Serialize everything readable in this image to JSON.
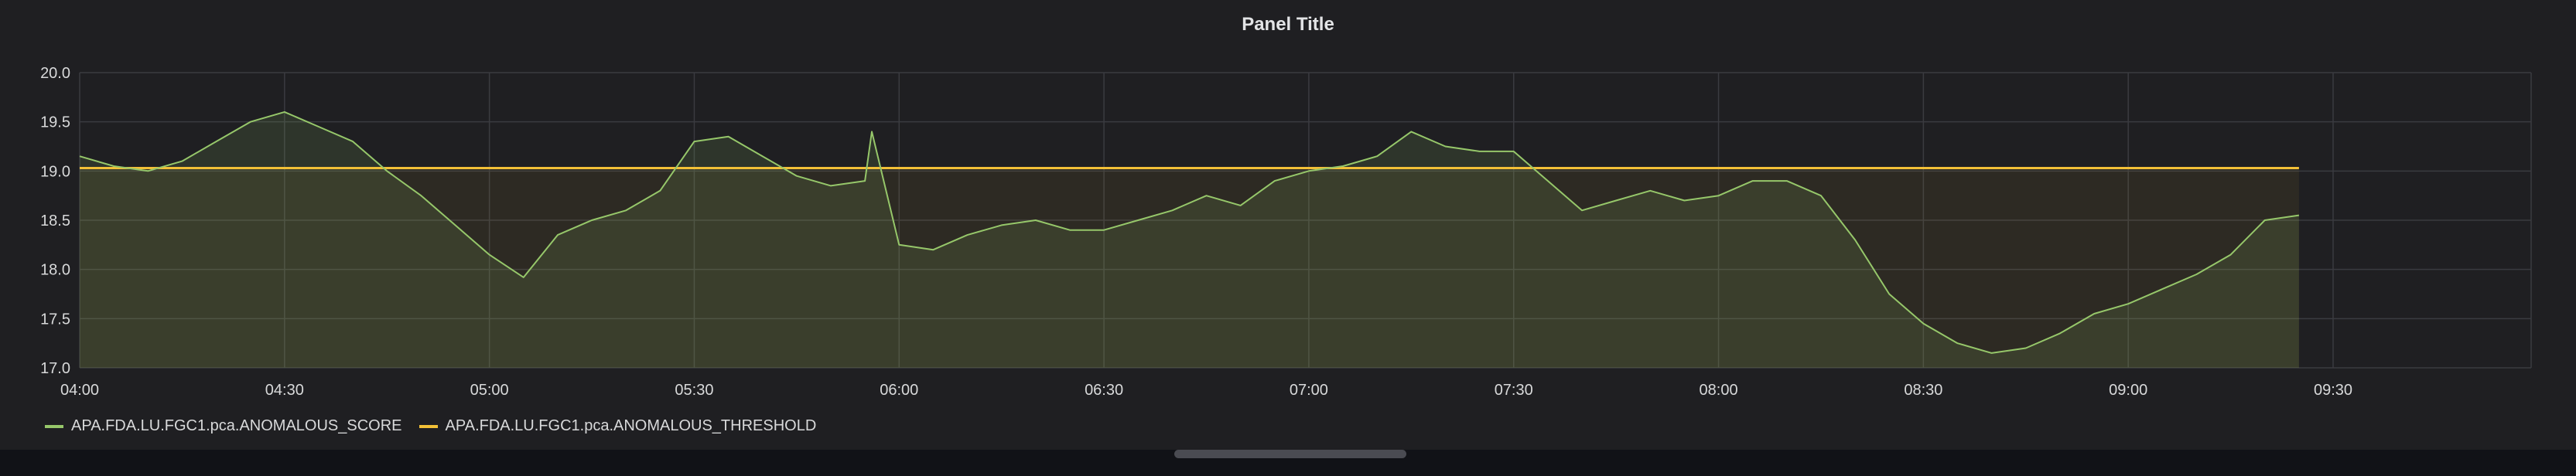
{
  "panel": {
    "title": "Panel Title"
  },
  "colors": {
    "background": "#1f1f22",
    "grid": "#3a3b40",
    "tick_text": "#d8d9da",
    "score": "#96c76a",
    "threshold": "#f2c037"
  },
  "chart_data": {
    "type": "line",
    "title": "Panel Title",
    "xlabel": "",
    "ylabel": "",
    "ylim": [
      17.0,
      20.0
    ],
    "xlim": [
      "04:00",
      "09:59"
    ],
    "grid": true,
    "legend_position": "bottom-left",
    "x_ticks": [
      "04:00",
      "04:30",
      "05:00",
      "05:30",
      "06:00",
      "06:30",
      "07:00",
      "07:30",
      "08:00",
      "08:30",
      "09:00",
      "09:30"
    ],
    "y_ticks": [
      "17.0",
      "17.5",
      "18.0",
      "18.5",
      "19.0",
      "19.5",
      "20.0"
    ],
    "series": [
      {
        "name": "APA.FDA.LU.FGC1.pca.ANOMALOUS_SCORE",
        "color": "#96c76a",
        "fill": true,
        "x": [
          "04:00",
          "04:05",
          "04:10",
          "04:15",
          "04:20",
          "04:25",
          "04:30",
          "04:35",
          "04:40",
          "04:45",
          "04:50",
          "04:55",
          "05:00",
          "05:05",
          "05:10",
          "05:15",
          "05:20",
          "05:25",
          "05:30",
          "05:35",
          "05:40",
          "05:45",
          "05:50",
          "05:55",
          "05:56",
          "06:00",
          "06:05",
          "06:10",
          "06:15",
          "06:20",
          "06:25",
          "06:30",
          "06:35",
          "06:40",
          "06:45",
          "06:50",
          "06:55",
          "07:00",
          "07:05",
          "07:10",
          "07:15",
          "07:20",
          "07:25",
          "07:30",
          "07:35",
          "07:40",
          "07:45",
          "07:50",
          "07:55",
          "08:00",
          "08:05",
          "08:10",
          "08:15",
          "08:20",
          "08:25",
          "08:30",
          "08:35",
          "08:40",
          "08:45",
          "08:50",
          "08:55",
          "09:00",
          "09:05",
          "09:10",
          "09:15",
          "09:20",
          "09:25"
        ],
        "values": [
          19.15,
          19.05,
          19.0,
          19.1,
          19.3,
          19.5,
          19.6,
          19.45,
          19.3,
          19.0,
          18.75,
          18.45,
          18.15,
          17.92,
          18.35,
          18.5,
          18.6,
          18.8,
          19.3,
          19.35,
          19.15,
          18.95,
          18.85,
          18.9,
          19.4,
          18.25,
          18.2,
          18.35,
          18.45,
          18.5,
          18.4,
          18.4,
          18.5,
          18.6,
          18.75,
          18.65,
          18.9,
          19.0,
          19.05,
          19.15,
          19.4,
          19.25,
          19.2,
          19.2,
          18.9,
          18.6,
          18.7,
          18.8,
          18.7,
          18.75,
          18.9,
          18.9,
          18.75,
          18.3,
          17.75,
          17.45,
          17.25,
          17.15,
          17.2,
          17.35,
          17.55,
          17.65,
          17.8,
          17.95,
          18.15,
          18.5,
          18.55
        ]
      },
      {
        "name": "APA.FDA.LU.FGC1.pca.ANOMALOUS_THRESHOLD",
        "color": "#f2c037",
        "fill": true,
        "x": [
          "04:00",
          "09:25"
        ],
        "values": [
          19.03,
          19.03
        ]
      }
    ]
  }
}
